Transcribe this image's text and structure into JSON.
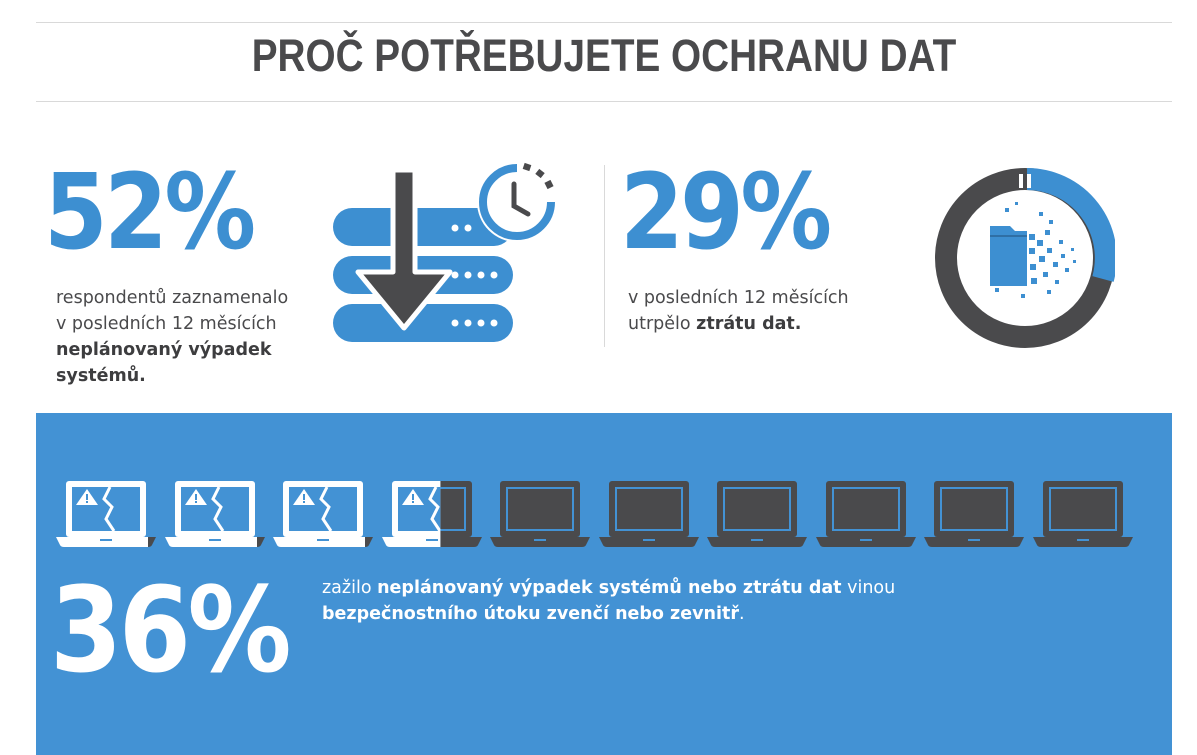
{
  "title": "PROČ POTŘEBUJETE OCHRANU DAT",
  "stat1": {
    "value": "52%",
    "line1": "respondentů zaznamenalo",
    "line2": "v posledních 12 měsících",
    "bold": "neplánovaný výpadek",
    "bold2": "systémů."
  },
  "stat2": {
    "value": "29%",
    "line1": "v posledních 12 měsících",
    "pre": "utrpělo ",
    "bold": "ztrátu dat."
  },
  "stat3": {
    "value": "36%",
    "t1": "zažilo ",
    "b1": "neplánovaný výpadek systémů nebo ztrátu dat",
    "t2": " vinou",
    "b2": "bezpečnostního útoku zvenčí nebo zevnitř",
    "t3": "."
  },
  "laptops": {
    "total": 10,
    "affected_fraction": 0.36
  },
  "colors": {
    "blue": "#3d8fd1",
    "dark": "#4a4a4c",
    "panel": "#4392d4"
  },
  "icons": [
    "server-download-clock-icon",
    "data-loss-donut-icon",
    "broken-laptop-icon",
    "laptop-icon"
  ]
}
